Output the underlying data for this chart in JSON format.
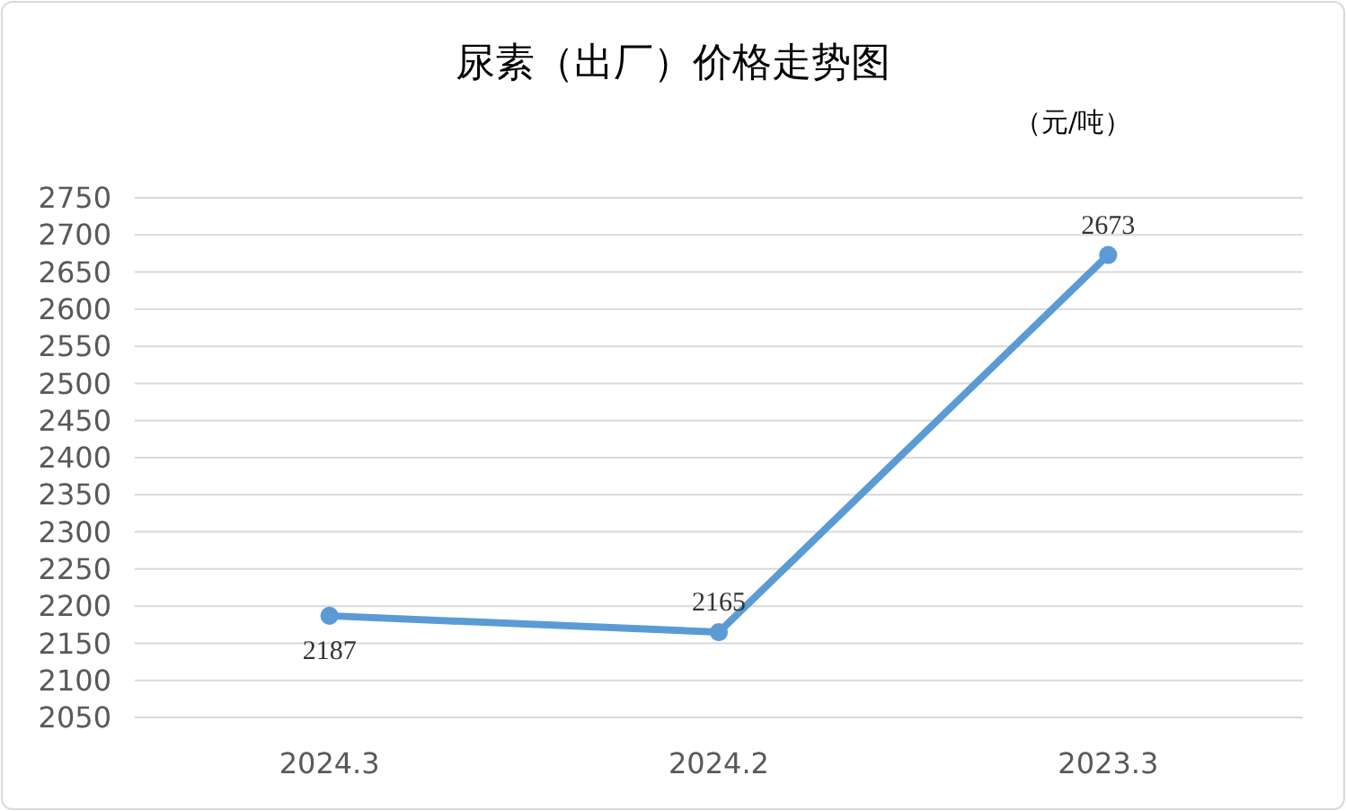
{
  "chart_data": {
    "type": "line",
    "title": "尿素（出厂）价格走势图",
    "annotations": [
      "（元/吨）"
    ],
    "categories": [
      "2024.3",
      "2024.2",
      "2023.3"
    ],
    "series": [
      {
        "color": "#5b9bd5",
        "values": [
          2187,
          2165,
          2673
        ]
      }
    ],
    "ylim": [
      2050,
      2750
    ],
    "yticks": [
      2050,
      2100,
      2150,
      2200,
      2250,
      2300,
      2350,
      2400,
      2450,
      2500,
      2550,
      2600,
      2650,
      2700,
      2750
    ],
    "grid": "y",
    "marker": "circle",
    "data_labels": true
  }
}
